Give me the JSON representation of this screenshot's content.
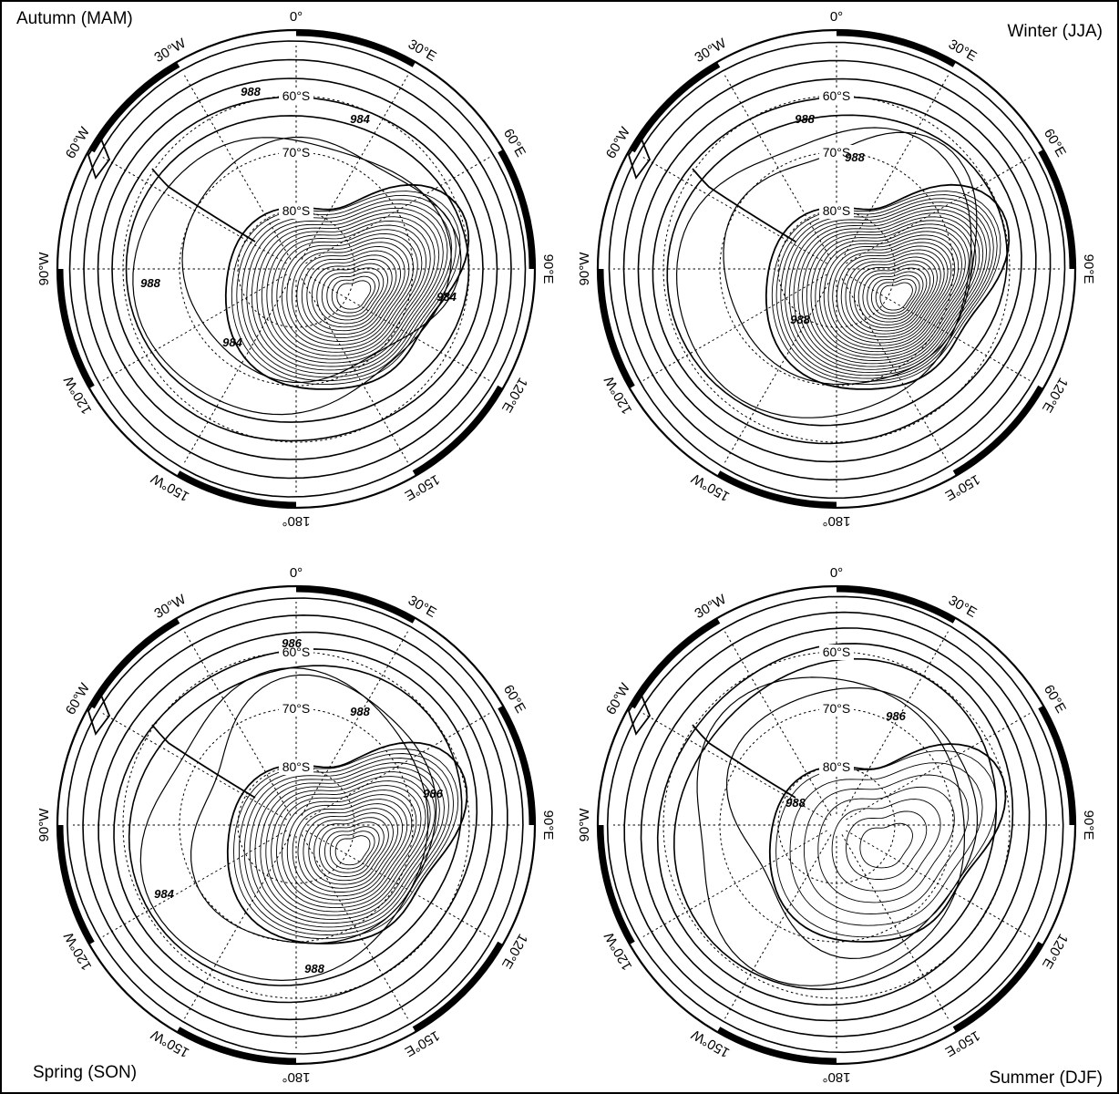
{
  "panels": [
    {
      "title": "Autumn (MAM)",
      "title_position": "top-left",
      "pressure_contour_labels": [
        "988",
        "984",
        "988",
        "984",
        "984"
      ],
      "latitude_labels": [
        "60°S",
        "70°S",
        "80°S"
      ],
      "longitude_labels": [
        "0°",
        "30°E",
        "60°E",
        "90°E",
        "120°E",
        "150°E",
        "180°",
        "150°W",
        "120°W",
        "90°W",
        "60°W",
        "30°W"
      ]
    },
    {
      "title": "Winter (JJA)",
      "title_position": "top-right",
      "pressure_contour_labels": [
        "988",
        "988",
        "988"
      ],
      "latitude_labels": [
        "60°S",
        "70°S",
        "80°S"
      ],
      "longitude_labels": [
        "0°",
        "30°E",
        "60°E",
        "90°E",
        "120°E",
        "150°E",
        "180°",
        "150°W",
        "120°W",
        "90°W",
        "60°W",
        "30°W"
      ]
    },
    {
      "title": "Spring (SON)",
      "title_position": "bottom-left",
      "pressure_contour_labels": [
        "986",
        "988",
        "984",
        "986",
        "988"
      ],
      "latitude_labels": [
        "60°S",
        "70°S",
        "80°S"
      ],
      "longitude_labels": [
        "0°",
        "30°E",
        "60°E",
        "90°E",
        "120°E",
        "150°E",
        "180°",
        "150°W",
        "120°W",
        "90°W",
        "60°W",
        "30°W"
      ]
    },
    {
      "title": "Summer (DJF)",
      "title_position": "bottom-right",
      "pressure_contour_labels": [
        "986",
        "988"
      ],
      "latitude_labels": [
        "60°S",
        "70°S",
        "80°S"
      ],
      "longitude_labels": [
        "0°",
        "30°E",
        "60°E",
        "90°E",
        "120°E",
        "150°E",
        "180°",
        "150°W",
        "120°W",
        "90°W",
        "60°W",
        "30°W"
      ]
    }
  ]
}
